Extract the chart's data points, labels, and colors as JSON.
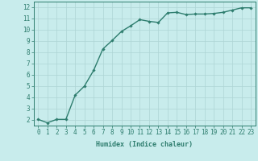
{
  "x": [
    0,
    1,
    2,
    3,
    4,
    5,
    6,
    7,
    8,
    9,
    10,
    11,
    12,
    13,
    14,
    15,
    16,
    17,
    18,
    19,
    20,
    21,
    22,
    23
  ],
  "y": [
    2.05,
    1.75,
    2.05,
    2.05,
    4.2,
    5.0,
    6.4,
    8.3,
    9.05,
    9.85,
    10.35,
    10.9,
    10.75,
    10.65,
    11.5,
    11.55,
    11.35,
    11.4,
    11.4,
    11.45,
    11.55,
    11.75,
    11.95,
    11.95
  ],
  "line_color": "#2e7d6e",
  "marker": "D",
  "marker_size": 1.8,
  "bg_color": "#c8ecec",
  "grid_color": "#aed4d4",
  "xlabel": "Humidex (Indice chaleur)",
  "xlim": [
    -0.5,
    23.5
  ],
  "ylim": [
    1.5,
    12.5
  ],
  "xticks": [
    0,
    1,
    2,
    3,
    4,
    5,
    6,
    7,
    8,
    9,
    10,
    11,
    12,
    13,
    14,
    15,
    16,
    17,
    18,
    19,
    20,
    21,
    22,
    23
  ],
  "yticks": [
    2,
    3,
    4,
    5,
    6,
    7,
    8,
    9,
    10,
    11,
    12
  ],
  "tick_color": "#2e7d6e",
  "label_color": "#2e7d6e",
  "xlabel_fontsize": 6.0,
  "tick_fontsize": 5.5,
  "linewidth": 1.0
}
